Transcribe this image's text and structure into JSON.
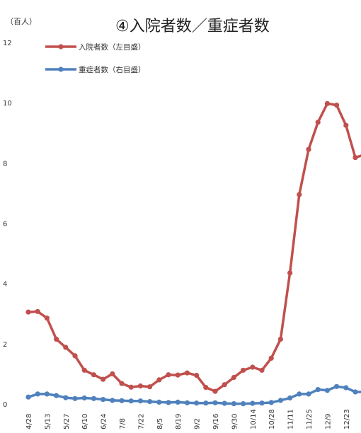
{
  "chart_data": {
    "type": "line",
    "title": "④入院者数／重症者数",
    "unit_label": "（百人）",
    "ylim": [
      0,
      12
    ],
    "yticks": [
      "0",
      "2",
      "4",
      "6",
      "8",
      "10",
      "12"
    ],
    "x_tick_labels": [
      "4/28",
      "5/13",
      "5/27",
      "6/10",
      "6/24",
      "7/8",
      "7/22",
      "8/5",
      "8/19",
      "9/2",
      "9/16",
      "9/30",
      "10/14",
      "10/28",
      "11/11",
      "11/25",
      "12/9",
      "12/23"
    ],
    "legend_position": "top-left",
    "series": [
      {
        "name": "入院者数（左目盛）",
        "color": "#C0504D",
        "values": [
          3.05,
          3.07,
          2.85,
          2.15,
          1.88,
          1.6,
          1.12,
          0.97,
          0.82,
          1.0,
          0.68,
          0.56,
          0.6,
          0.57,
          0.8,
          0.97,
          0.96,
          1.03,
          0.95,
          0.55,
          0.42,
          0.64,
          0.88,
          1.12,
          1.22,
          1.12,
          1.52,
          2.15,
          4.35,
          6.95,
          8.45,
          9.35,
          9.97,
          9.92,
          9.25,
          8.18,
          8.28
        ]
      },
      {
        "name": "重症者数（右目盛）",
        "color": "#4F81BD",
        "values": [
          0.23,
          0.33,
          0.33,
          0.28,
          0.21,
          0.18,
          0.2,
          0.18,
          0.15,
          0.12,
          0.11,
          0.1,
          0.1,
          0.08,
          0.06,
          0.05,
          0.06,
          0.04,
          0.03,
          0.03,
          0.04,
          0.02,
          0.01,
          0.01,
          0.02,
          0.03,
          0.05,
          0.12,
          0.2,
          0.33,
          0.33,
          0.48,
          0.45,
          0.58,
          0.54,
          0.4,
          0.4
        ]
      }
    ]
  }
}
